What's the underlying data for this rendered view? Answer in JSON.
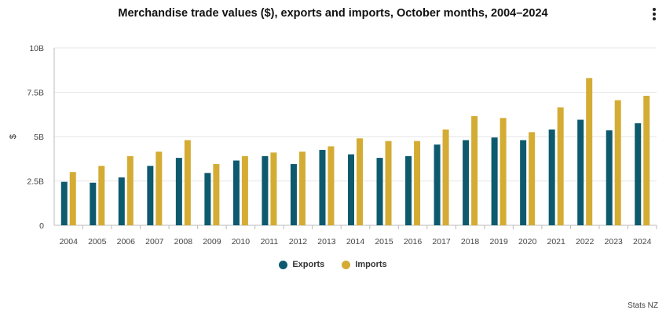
{
  "title": "Merchandise trade values ($), exports and imports, October months, 2004–2024",
  "credit": "Stats NZ",
  "menu_icon": "more-vertical-icon",
  "colors": {
    "exports": "#0d5a6e",
    "imports": "#d4ac34",
    "grid": "#e6e6e6",
    "axis": "#bbbbbb"
  },
  "chart_data": {
    "type": "bar",
    "ylabel": "$",
    "xlabel": "",
    "ylim": [
      0,
      10
    ],
    "ytick_values": [
      0,
      2.5,
      5,
      7.5,
      10
    ],
    "ytick_labels": [
      "0",
      "2.5B",
      "5B",
      "7.5B",
      "10B"
    ],
    "categories": [
      "2004",
      "2005",
      "2006",
      "2007",
      "2008",
      "2009",
      "2010",
      "2011",
      "2012",
      "2013",
      "2014",
      "2015",
      "2016",
      "2017",
      "2018",
      "2019",
      "2020",
      "2021",
      "2022",
      "2023",
      "2024"
    ],
    "series": [
      {
        "name": "Exports",
        "values": [
          2.45,
          2.4,
          2.7,
          3.35,
          3.8,
          2.95,
          3.65,
          3.9,
          3.45,
          4.25,
          4.0,
          3.8,
          3.9,
          4.55,
          4.8,
          4.95,
          4.8,
          5.4,
          5.95,
          5.35,
          5.75
        ]
      },
      {
        "name": "Imports",
        "values": [
          3.0,
          3.35,
          3.9,
          4.15,
          4.8,
          3.45,
          3.9,
          4.1,
          4.15,
          4.45,
          4.9,
          4.75,
          4.75,
          5.4,
          6.15,
          6.05,
          5.25,
          6.65,
          8.3,
          7.05,
          7.3
        ]
      }
    ],
    "legend_position": "bottom-center",
    "grid": true
  }
}
